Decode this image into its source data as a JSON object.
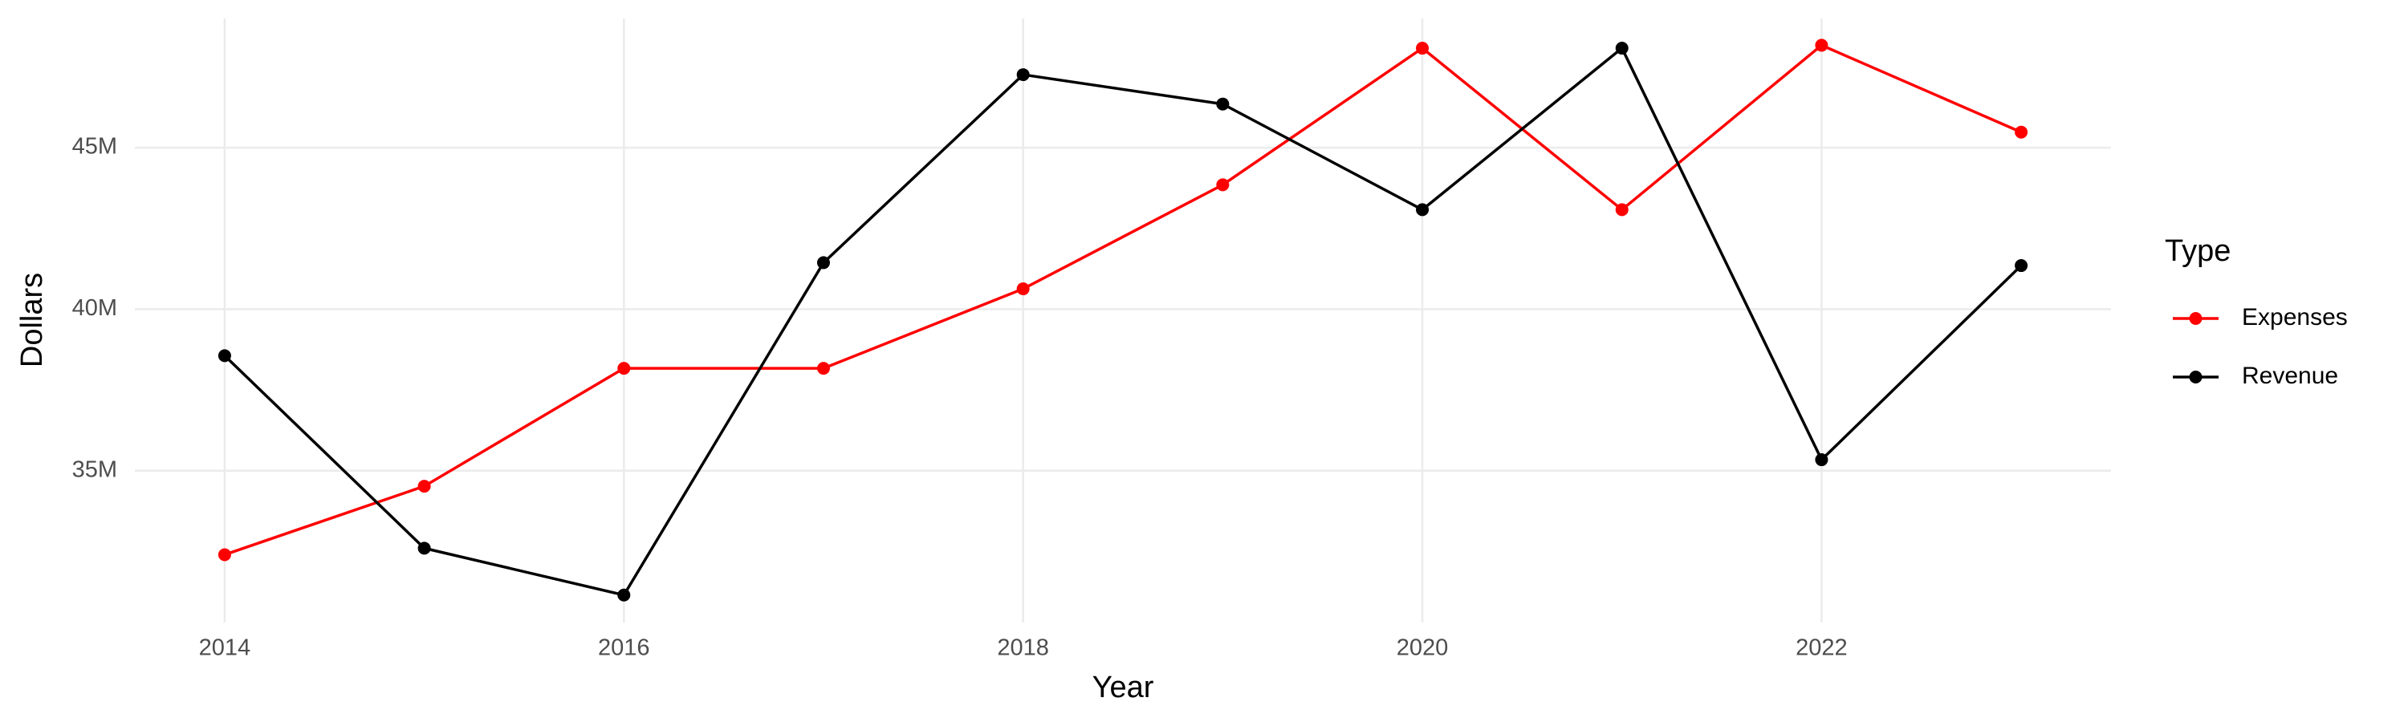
{
  "chart_data": {
    "type": "line",
    "x_label": "Year",
    "y_label": "Dollars",
    "legend_title": "Type",
    "x": [
      2014,
      2015,
      2016,
      2017,
      2018,
      2019,
      2020,
      2021,
      2022,
      2023
    ],
    "series": [
      {
        "name": "Expenses",
        "color": "#ff0000",
        "values": [
          32400000,
          34520000,
          38170000,
          38170000,
          40630000,
          43850000,
          48080000,
          43080000,
          48170000,
          45480000
        ]
      },
      {
        "name": "Revenue",
        "color": "#000000",
        "values": [
          38560000,
          32600000,
          31150000,
          41440000,
          47260000,
          46350000,
          43080000,
          48080000,
          35340000,
          41350000
        ]
      }
    ],
    "xlim": [
      2013.55,
      2023.45
    ],
    "xticks": [
      2014,
      2016,
      2018,
      2020,
      2022
    ],
    "ylim": [
      30300000,
      49000000
    ],
    "yticks": [
      {
        "value": 35000000,
        "label": "35M"
      },
      {
        "value": 40000000,
        "label": "40M"
      },
      {
        "value": 45000000,
        "label": "45M"
      }
    ],
    "grid": true,
    "legend": "right"
  }
}
